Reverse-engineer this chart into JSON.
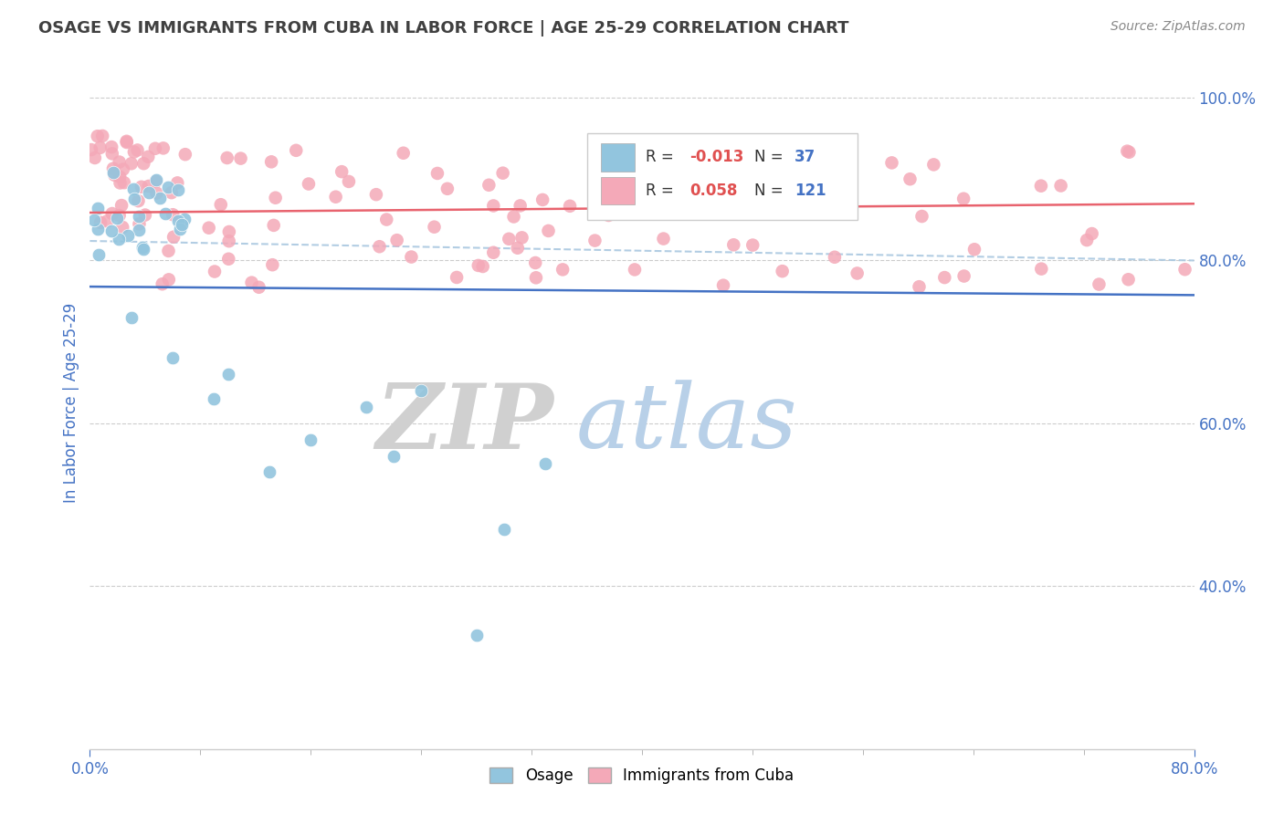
{
  "title": "OSAGE VS IMMIGRANTS FROM CUBA IN LABOR FORCE | AGE 25-29 CORRELATION CHART",
  "source_text": "Source: ZipAtlas.com",
  "ylabel": "In Labor Force | Age 25-29",
  "osage_color": "#92c5de",
  "cuba_color": "#f4a9b8",
  "trend_osage_color": "#4472c4",
  "trend_cuba_color": "#e8636e",
  "dashed_line_color": "#aac8e0",
  "watermark_ZIP_color": "#d0d0d0",
  "watermark_atlas_color": "#b8d0e8",
  "title_color": "#404040",
  "axis_color": "#4472c4",
  "background_color": "#ffffff",
  "xlim": [
    0.0,
    0.8
  ],
  "ylim": [
    0.2,
    1.05
  ],
  "figwidth": 14.06,
  "figheight": 8.92,
  "dpi": 100
}
